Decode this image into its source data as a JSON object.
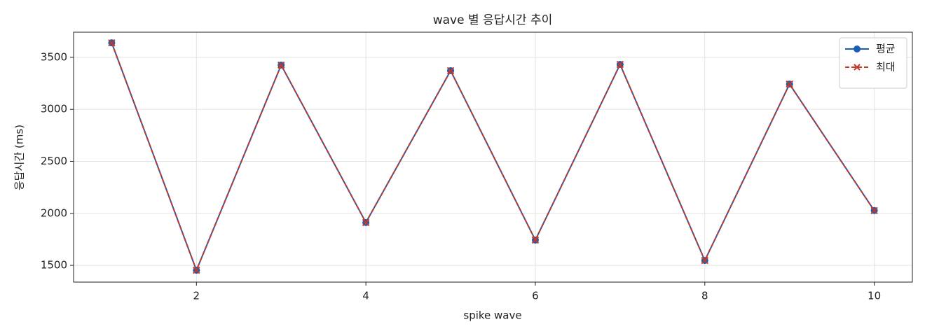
{
  "chart_data": {
    "type": "line",
    "title": "wave 별 응답시간 추이",
    "x_label": "spike wave",
    "y_label": "응답시간 (ms)",
    "x": [
      1,
      2,
      3,
      4,
      5,
      6,
      7,
      8,
      9,
      10
    ],
    "series": [
      {
        "name": "평균",
        "color": "#1a5fb4",
        "marker": "o",
        "linestyle": "solid",
        "values": [
          3640,
          1453,
          3426,
          1912,
          3372,
          1743,
          3432,
          1547,
          3243,
          2027
        ]
      },
      {
        "name": "최대",
        "color": "#c0392b",
        "marker": "x",
        "linestyle": "dashed",
        "values": [
          3640,
          1453,
          3426,
          1912,
          3372,
          1743,
          3432,
          1547,
          3243,
          2027
        ]
      }
    ],
    "xlim": [
      0.55,
      10.45
    ],
    "xticks": [
      2,
      4,
      6,
      8,
      10
    ],
    "ylim": [
      1339,
      3742
    ],
    "yticks": [
      1500,
      2000,
      2500,
      3000,
      3500
    ],
    "grid": true,
    "legend": "upper right"
  }
}
